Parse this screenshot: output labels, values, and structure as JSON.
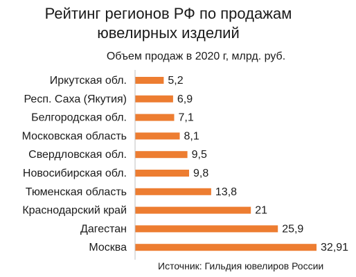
{
  "chart_data": {
    "type": "bar",
    "orientation": "horizontal",
    "title": [
      "Рейтинг регионов РФ по продажам",
      "ювелирных изделий"
    ],
    "subtitle": "Объем продаж в 2020 г, млрд. руб.",
    "categories": [
      "Иркутская обл.",
      "Респ. Саха (Якутия)",
      "Белгородская обл.",
      "Московская область",
      "Свердловская обл.",
      "Новосибирская обл.",
      "Тюменская область",
      "Краснодарский край",
      "Дагестан",
      "Москва"
    ],
    "values": [
      5.2,
      6.9,
      7.1,
      8.1,
      9.5,
      9.8,
      13.8,
      21,
      25.9,
      32.91
    ],
    "value_labels": [
      "5,2",
      "6,9",
      "7,1",
      "8,1",
      "9,5",
      "9,8",
      "13,8",
      "21",
      "25,9",
      "32,91"
    ],
    "xlim": [
      0,
      32.91
    ],
    "grid": false,
    "bar_color": "#ED7D31",
    "axis_color": "#BFBFBF",
    "source": "Источник: Гильдия ювелиров России"
  }
}
